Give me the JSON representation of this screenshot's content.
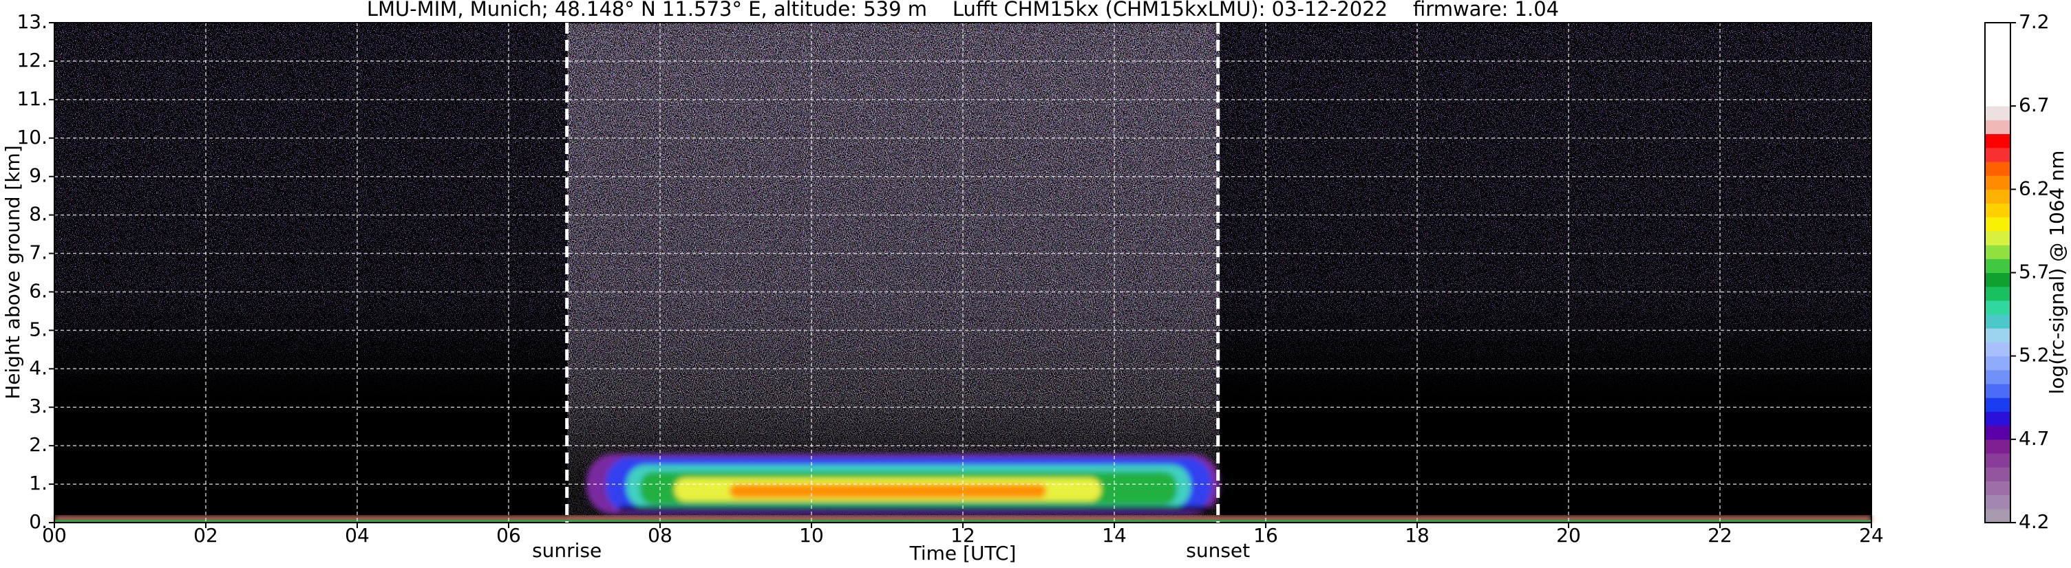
{
  "chart_data": {
    "type": "heatmap",
    "title": "LMU-MIM, Munich; 48.148° N 11.573° E, altitude: 539 m    Lufft CHM15kx (CHM15kxLMU): 03-12-2022    firmware: 1.04",
    "x_label": "Time [UTC]",
    "y_label": "Height above ground [km]",
    "xlim": [
      0,
      24
    ],
    "xticks": [
      {
        "value": 0,
        "label": "00"
      },
      {
        "value": 2,
        "label": "02"
      },
      {
        "value": 4,
        "label": "04"
      },
      {
        "value": 6,
        "label": "06"
      },
      {
        "value": 8,
        "label": "08"
      },
      {
        "value": 10,
        "label": "10"
      },
      {
        "value": 12,
        "label": "12"
      },
      {
        "value": 14,
        "label": "14"
      },
      {
        "value": 16,
        "label": "16"
      },
      {
        "value": 18,
        "label": "18"
      },
      {
        "value": 20,
        "label": "20"
      },
      {
        "value": 22,
        "label": "22"
      },
      {
        "value": 24,
        "label": "24"
      }
    ],
    "ylim": [
      0,
      13
    ],
    "yticks": [
      {
        "value": 0,
        "label": "0."
      },
      {
        "value": 1,
        "label": "1."
      },
      {
        "value": 2,
        "label": "2."
      },
      {
        "value": 3,
        "label": "3."
      },
      {
        "value": 4,
        "label": "4."
      },
      {
        "value": 5,
        "label": "5."
      },
      {
        "value": 6,
        "label": "6."
      },
      {
        "value": 7,
        "label": "7."
      },
      {
        "value": 8,
        "label": "8."
      },
      {
        "value": 9,
        "label": "9."
      },
      {
        "value": 10,
        "label": "10."
      },
      {
        "value": 11,
        "label": "11."
      },
      {
        "value": 12,
        "label": "12."
      },
      {
        "value": 13,
        "label": "13."
      }
    ],
    "grid": true,
    "annotations": [
      {
        "text": "sunrise",
        "x": 6.77
      },
      {
        "text": "sunset",
        "x": 15.37
      }
    ],
    "colorbar": {
      "label": "log(rc-signal) @ 1064 nm",
      "lim": [
        4.2,
        7.2
      ],
      "ticks": [
        4.2,
        4.7,
        5.2,
        5.7,
        6.2,
        6.7,
        7.2
      ],
      "colors": [
        "#a89aae",
        "#a487b0",
        "#9d6fa6",
        "#93559e",
        "#8a3d98",
        "#7e1f92",
        "#5a00a8",
        "#2a10d8",
        "#1a3cf0",
        "#4a6cf6",
        "#7090fa",
        "#90aafc",
        "#a8bffc",
        "#9cd4f0",
        "#4cc8c8",
        "#30d8a0",
        "#18c060",
        "#10a030",
        "#40c840",
        "#90e040",
        "#d8f040",
        "#f8f000",
        "#ffd000",
        "#ffb000",
        "#ff8c00",
        "#ff6000",
        "#f83030",
        "#ff0000",
        "#f0b8b8",
        "#ece0e0",
        "#ffffff",
        "#ffffff",
        "#ffffff",
        "#ffffff",
        "#ffffff",
        "#ffffff"
      ]
    }
  }
}
